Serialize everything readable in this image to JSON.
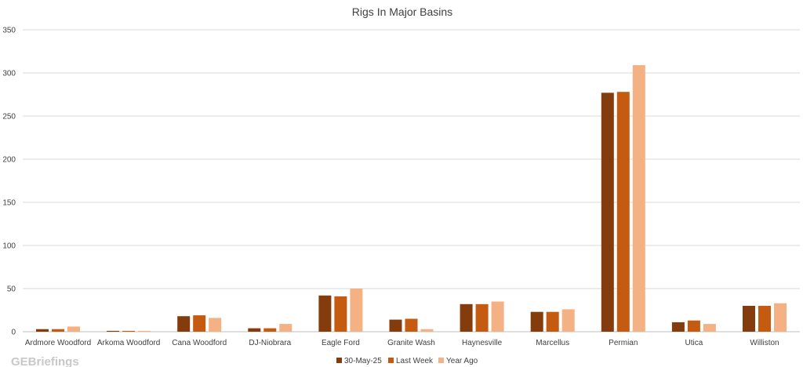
{
  "chart_data": {
    "type": "bar",
    "title": "Rigs In Major Basins",
    "xlabel": "",
    "ylabel": "",
    "ylim": [
      0,
      350
    ],
    "yticks": [
      0,
      50,
      100,
      150,
      200,
      250,
      300,
      350
    ],
    "grid": true,
    "legend_position": "bottom",
    "categories": [
      "Ardmore Woodford",
      "Arkoma Woodford",
      "Cana Woodford",
      "DJ-Niobrara",
      "Eagle Ford",
      "Granite Wash",
      "Haynesville",
      "Marcellus",
      "Permian",
      "Utica",
      "Williston"
    ],
    "series": [
      {
        "name": "30-May-25",
        "color": "#843c0c",
        "values": [
          3,
          1,
          18,
          4,
          42,
          14,
          32,
          23,
          277,
          11,
          30
        ]
      },
      {
        "name": "Last Week",
        "color": "#c55a11",
        "values": [
          3,
          1,
          19,
          4,
          41,
          15,
          32,
          23,
          278,
          13,
          30
        ]
      },
      {
        "name": "Year Ago",
        "color": "#f4b183",
        "values": [
          6,
          1,
          16,
          9,
          50,
          3,
          35,
          26,
          309,
          9,
          33
        ]
      }
    ]
  },
  "watermark": "GEBriefings"
}
